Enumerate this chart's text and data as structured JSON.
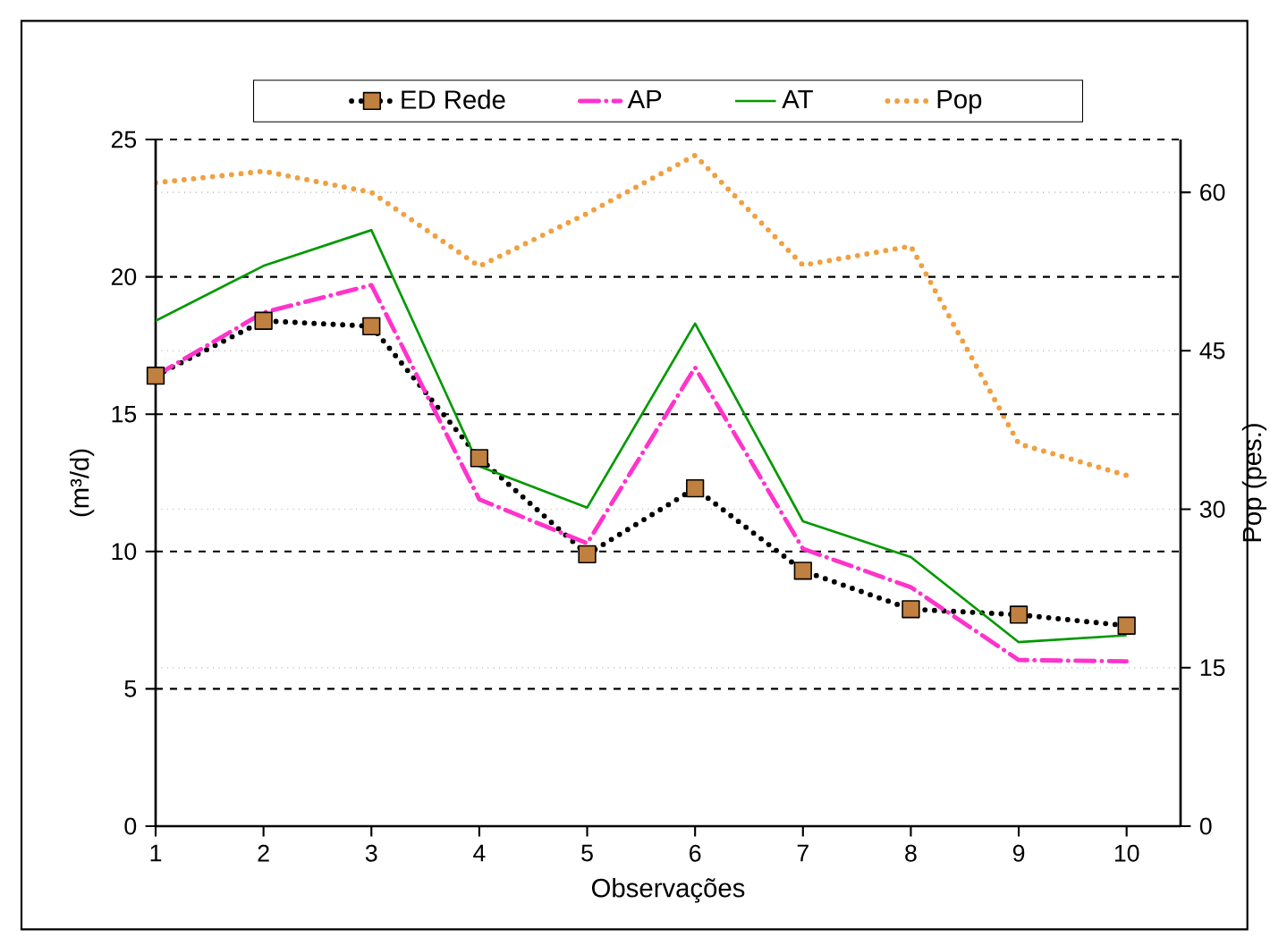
{
  "chart_data": {
    "type": "line",
    "xlabel": "Observações",
    "ylabel": "(m³/d)",
    "y2label": "Pop (pes.)",
    "x": [
      1,
      2,
      3,
      4,
      5,
      6,
      7,
      8,
      9,
      10
    ],
    "xlim": [
      1,
      10.5
    ],
    "xticks": [
      1,
      2,
      3,
      4,
      5,
      6,
      7,
      8,
      9,
      10
    ],
    "ylim": [
      0,
      25
    ],
    "yticks": [
      0,
      5,
      10,
      15,
      20,
      25
    ],
    "y2lim": [
      0,
      65
    ],
    "y2ticks": [
      0,
      15,
      30,
      45,
      60
    ],
    "grid": true,
    "legend": "top",
    "series": [
      {
        "name": "ED Rede",
        "color": "#c0803f",
        "marker": "square",
        "line_style": "dotted",
        "values": [
          16.4,
          18.4,
          18.2,
          13.4,
          9.9,
          12.3,
          9.3,
          7.9,
          7.7,
          7.3
        ]
      },
      {
        "name": "AP",
        "color": "#ff33cc",
        "marker": "none",
        "line_style": "dashdot",
        "values": [
          16.4,
          18.7,
          19.7,
          11.9,
          10.3,
          16.7,
          10.1,
          8.7,
          6.05,
          6.0
        ]
      },
      {
        "name": "AT",
        "color": "#009900",
        "marker": "none",
        "line_style": "solid",
        "values": [
          18.4,
          20.4,
          21.7,
          13.1,
          11.6,
          18.3,
          11.1,
          9.8,
          6.7,
          6.95
        ]
      },
      {
        "name": "Pop",
        "color": "#f0a040",
        "marker": "none",
        "line_style": "dotted",
        "axis": "y2",
        "values": [
          60.9,
          62,
          60,
          53,
          58,
          63.5,
          53.1,
          54.9,
          36.2,
          33.2
        ]
      }
    ]
  }
}
